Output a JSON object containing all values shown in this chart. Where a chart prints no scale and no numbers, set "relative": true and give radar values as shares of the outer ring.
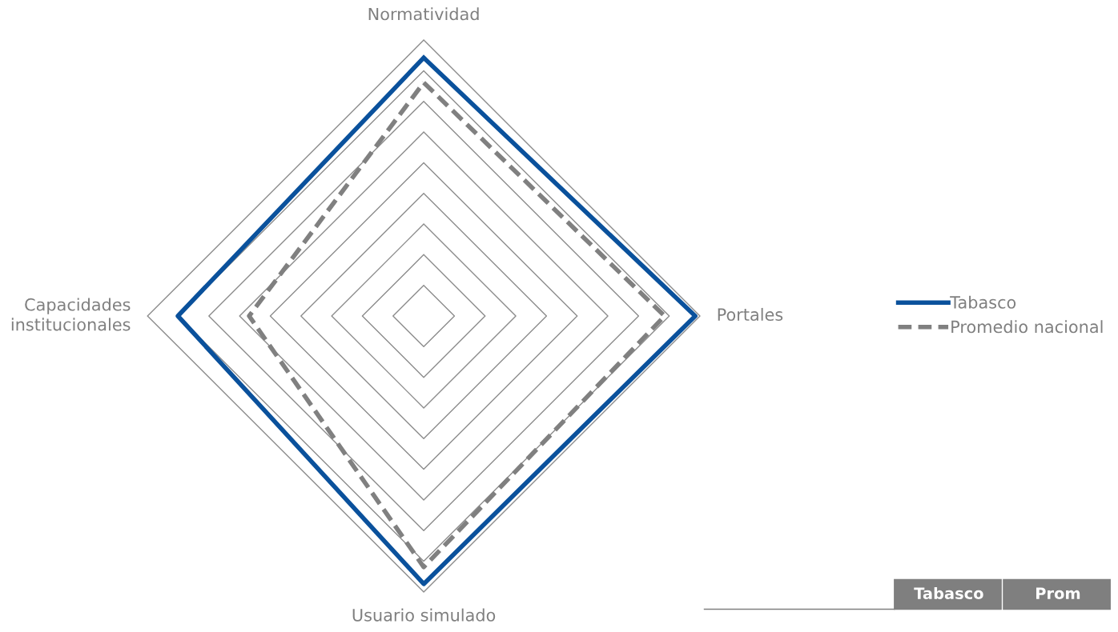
{
  "chart_data": {
    "type": "radar",
    "relative": true,
    "grid": true,
    "legend": "right",
    "categories": [
      "Normatividad",
      "Portales",
      "Usuario simulado",
      "Capacidades\ninstitucionales"
    ],
    "series": [
      {
        "name": "Tabasco",
        "color": "#0a519c",
        "line_style": "solid",
        "values": [
          0.936,
          0.983,
          0.971,
          0.89
        ]
      },
      {
        "name": "Promedio nacional",
        "color": "#808080",
        "line_style": "dashed",
        "values": [
          0.846,
          0.872,
          0.91,
          0.632
        ]
      }
    ],
    "annotations": [
      "Tabasco",
      "Prom"
    ]
  }
}
